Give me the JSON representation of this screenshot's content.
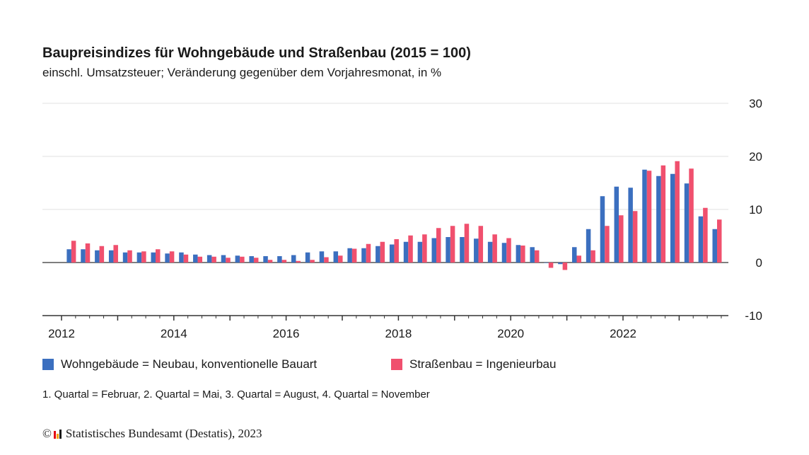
{
  "title": "Baupreisindizes für Wohngebäude und Straßenbau (2015 = 100)",
  "subtitle": "einschl. Umsatzsteuer; Veränderung gegenüber dem Vorjahresmonat, in %",
  "note": "1. Quartal = Februar, 2. Quartal = Mai, 3. Quartal = August, 4. Quartal = November",
  "source": {
    "copyright_symbol": "©",
    "text": "Statistisches Bundesamt (Destatis), 2023",
    "logo_colors": [
      "#e30613",
      "#f5a300",
      "#1a1a1a"
    ]
  },
  "chart_data": {
    "type": "bar",
    "x_start_year": 2012,
    "quarters_per_year": 4,
    "categories": [
      "2012 Q1",
      "2012 Q2",
      "2012 Q3",
      "2012 Q4",
      "2013 Q1",
      "2013 Q2",
      "2013 Q3",
      "2013 Q4",
      "2014 Q1",
      "2014 Q2",
      "2014 Q3",
      "2014 Q4",
      "2015 Q1",
      "2015 Q2",
      "2015 Q3",
      "2015 Q4",
      "2016 Q1",
      "2016 Q2",
      "2016 Q3",
      "2016 Q4",
      "2017 Q1",
      "2017 Q2",
      "2017 Q3",
      "2017 Q4",
      "2018 Q1",
      "2018 Q2",
      "2018 Q3",
      "2018 Q4",
      "2019 Q1",
      "2019 Q2",
      "2019 Q3",
      "2019 Q4",
      "2020 Q1",
      "2020 Q2",
      "2020 Q3",
      "2020 Q4",
      "2021 Q1",
      "2021 Q2",
      "2021 Q3",
      "2021 Q4",
      "2022 Q1",
      "2022 Q2",
      "2022 Q3",
      "2022 Q4",
      "2023 Q1",
      "2023 Q2",
      "2023 Q3"
    ],
    "series": [
      {
        "name": "Wohngebäude = Neubau, konventionelle Bauart",
        "color": "#3b6fbf",
        "values": [
          2.5,
          2.5,
          2.3,
          2.3,
          1.9,
          1.9,
          1.9,
          1.7,
          1.9,
          1.5,
          1.4,
          1.4,
          1.3,
          1.2,
          1.2,
          1.2,
          1.4,
          1.9,
          2.1,
          2.1,
          2.7,
          2.7,
          3.1,
          3.4,
          3.9,
          3.9,
          4.6,
          4.8,
          4.8,
          4.5,
          3.9,
          3.7,
          3.3,
          2.9,
          0.0,
          -0.3,
          2.9,
          6.3,
          12.5,
          14.3,
          14.1,
          17.5,
          16.3,
          16.7,
          14.9,
          8.7,
          6.3
        ]
      },
      {
        "name": "Straßenbau = Ingenieurbau",
        "color": "#f0506e",
        "values": [
          4.1,
          3.6,
          3.1,
          3.3,
          2.3,
          2.1,
          2.5,
          2.1,
          1.5,
          1.1,
          1.1,
          0.9,
          1.1,
          0.9,
          0.5,
          0.5,
          0.3,
          0.5,
          1.0,
          1.3,
          2.6,
          3.5,
          3.9,
          4.4,
          5.1,
          5.3,
          6.5,
          6.9,
          7.3,
          6.9,
          5.3,
          4.6,
          3.2,
          2.3,
          -1.0,
          -1.4,
          1.3,
          2.3,
          6.9,
          8.9,
          9.7,
          17.3,
          18.3,
          19.1,
          17.7,
          10.3,
          8.1
        ]
      }
    ],
    "y_axis": {
      "min": -10,
      "max": 30,
      "ticks": [
        "30",
        "20",
        "10",
        "0",
        "-10"
      ],
      "position": "right"
    },
    "x_axis": {
      "tick_labels": [
        "2012",
        "2014",
        "2016",
        "2018",
        "2020",
        "2022"
      ]
    },
    "grid": true,
    "legend_position": "bottom"
  }
}
